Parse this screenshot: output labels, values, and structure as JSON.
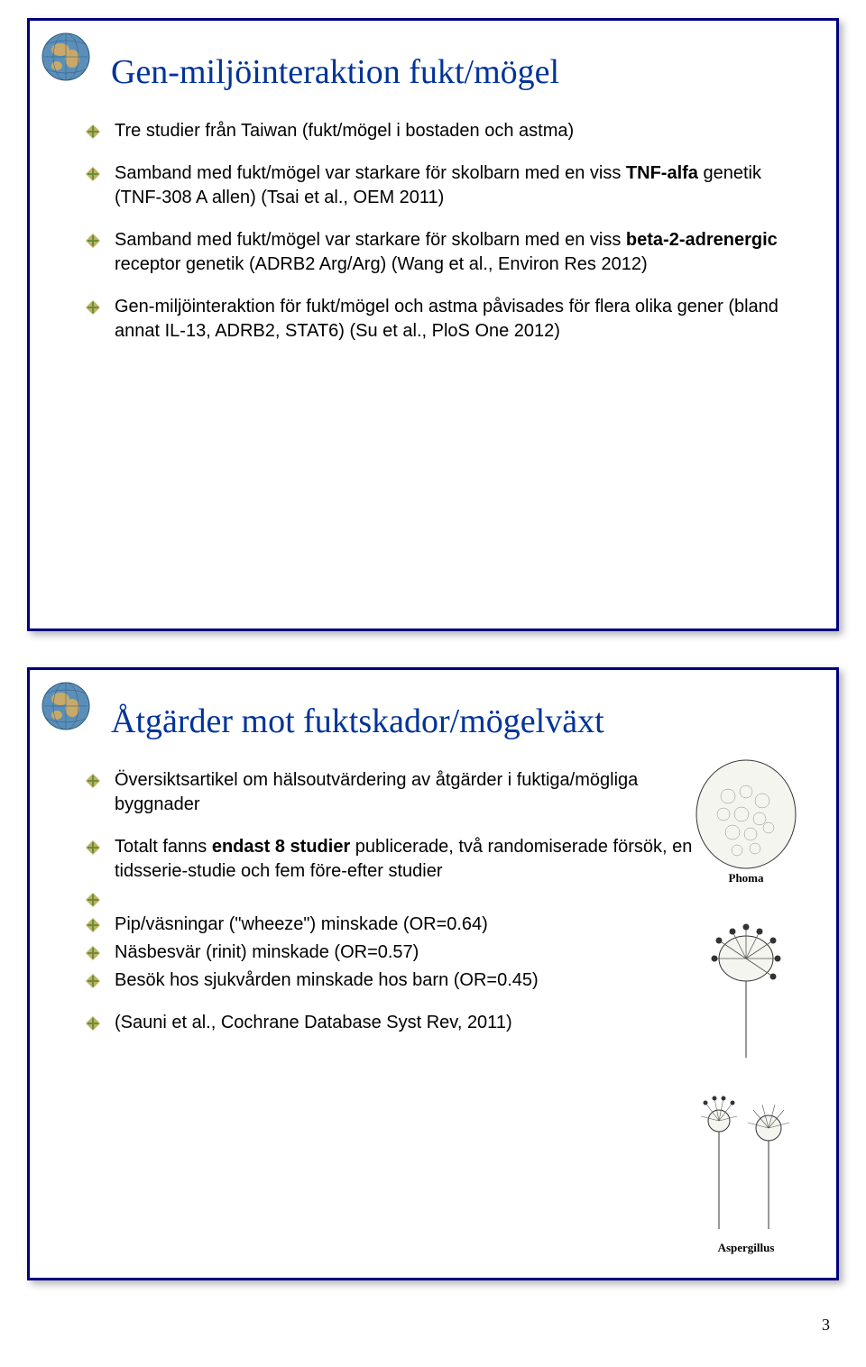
{
  "colors": {
    "slide_border": "#000080",
    "title_color": "#003399",
    "text_color": "#000000",
    "bullet_fill": "#c0b060",
    "bullet_accent1": "#668f3c",
    "bullet_accent2": "#8fa85c",
    "globe_water": "#5b8fb9",
    "globe_land": "#c9a96a",
    "globe_shadow": "#2d5a7d"
  },
  "slide1": {
    "title": "Gen-miljöinteraktion fukt/mögel",
    "bullets": [
      "Tre studier från Taiwan (fukt/mögel i bostaden och astma)",
      "Samband med fukt/mögel var starkare för skolbarn med en viss <b>TNF-alfa</b> genetik (TNF-308 A allen) (Tsai et al., OEM 2011)",
      "Samband med fukt/mögel var starkare för skolbarn med en viss <b>beta-2-adrenergic</b> receptor genetik (ADRB2 Arg/Arg) (Wang et al., Environ Res 2012)",
      "Gen-miljöinteraktion för fukt/mögel och astma påvisades för flera olika gener (bland annat IL-13, ADRB2, STAT6) (Su et al., PloS One 2012)"
    ]
  },
  "slide2": {
    "title": "Åtgärder mot fuktskador/mögelväxt",
    "bullets": [
      "Översiktsartikel om hälsoutvärdering av åtgärder i fuktiga/mögliga byggnader",
      "Totalt fanns <b>endast 8 studier</b> publicerade, två randomiserade försök, en tidsserie-studie och fem före-efter studier",
      "",
      "Pip/väsningar (\"wheeze\") minskade (OR=0.64)",
      "Näsbesvär (rinit) minskade (OR=0.57)",
      "Besök hos sjukvården minskade hos barn (OR=0.45)",
      "(Sauni et al., Cochrane Database Syst Rev, 2011)"
    ],
    "side_labels": {
      "phoma": "Phoma",
      "aspergillus": "Aspergillus"
    }
  },
  "page_number": "3"
}
